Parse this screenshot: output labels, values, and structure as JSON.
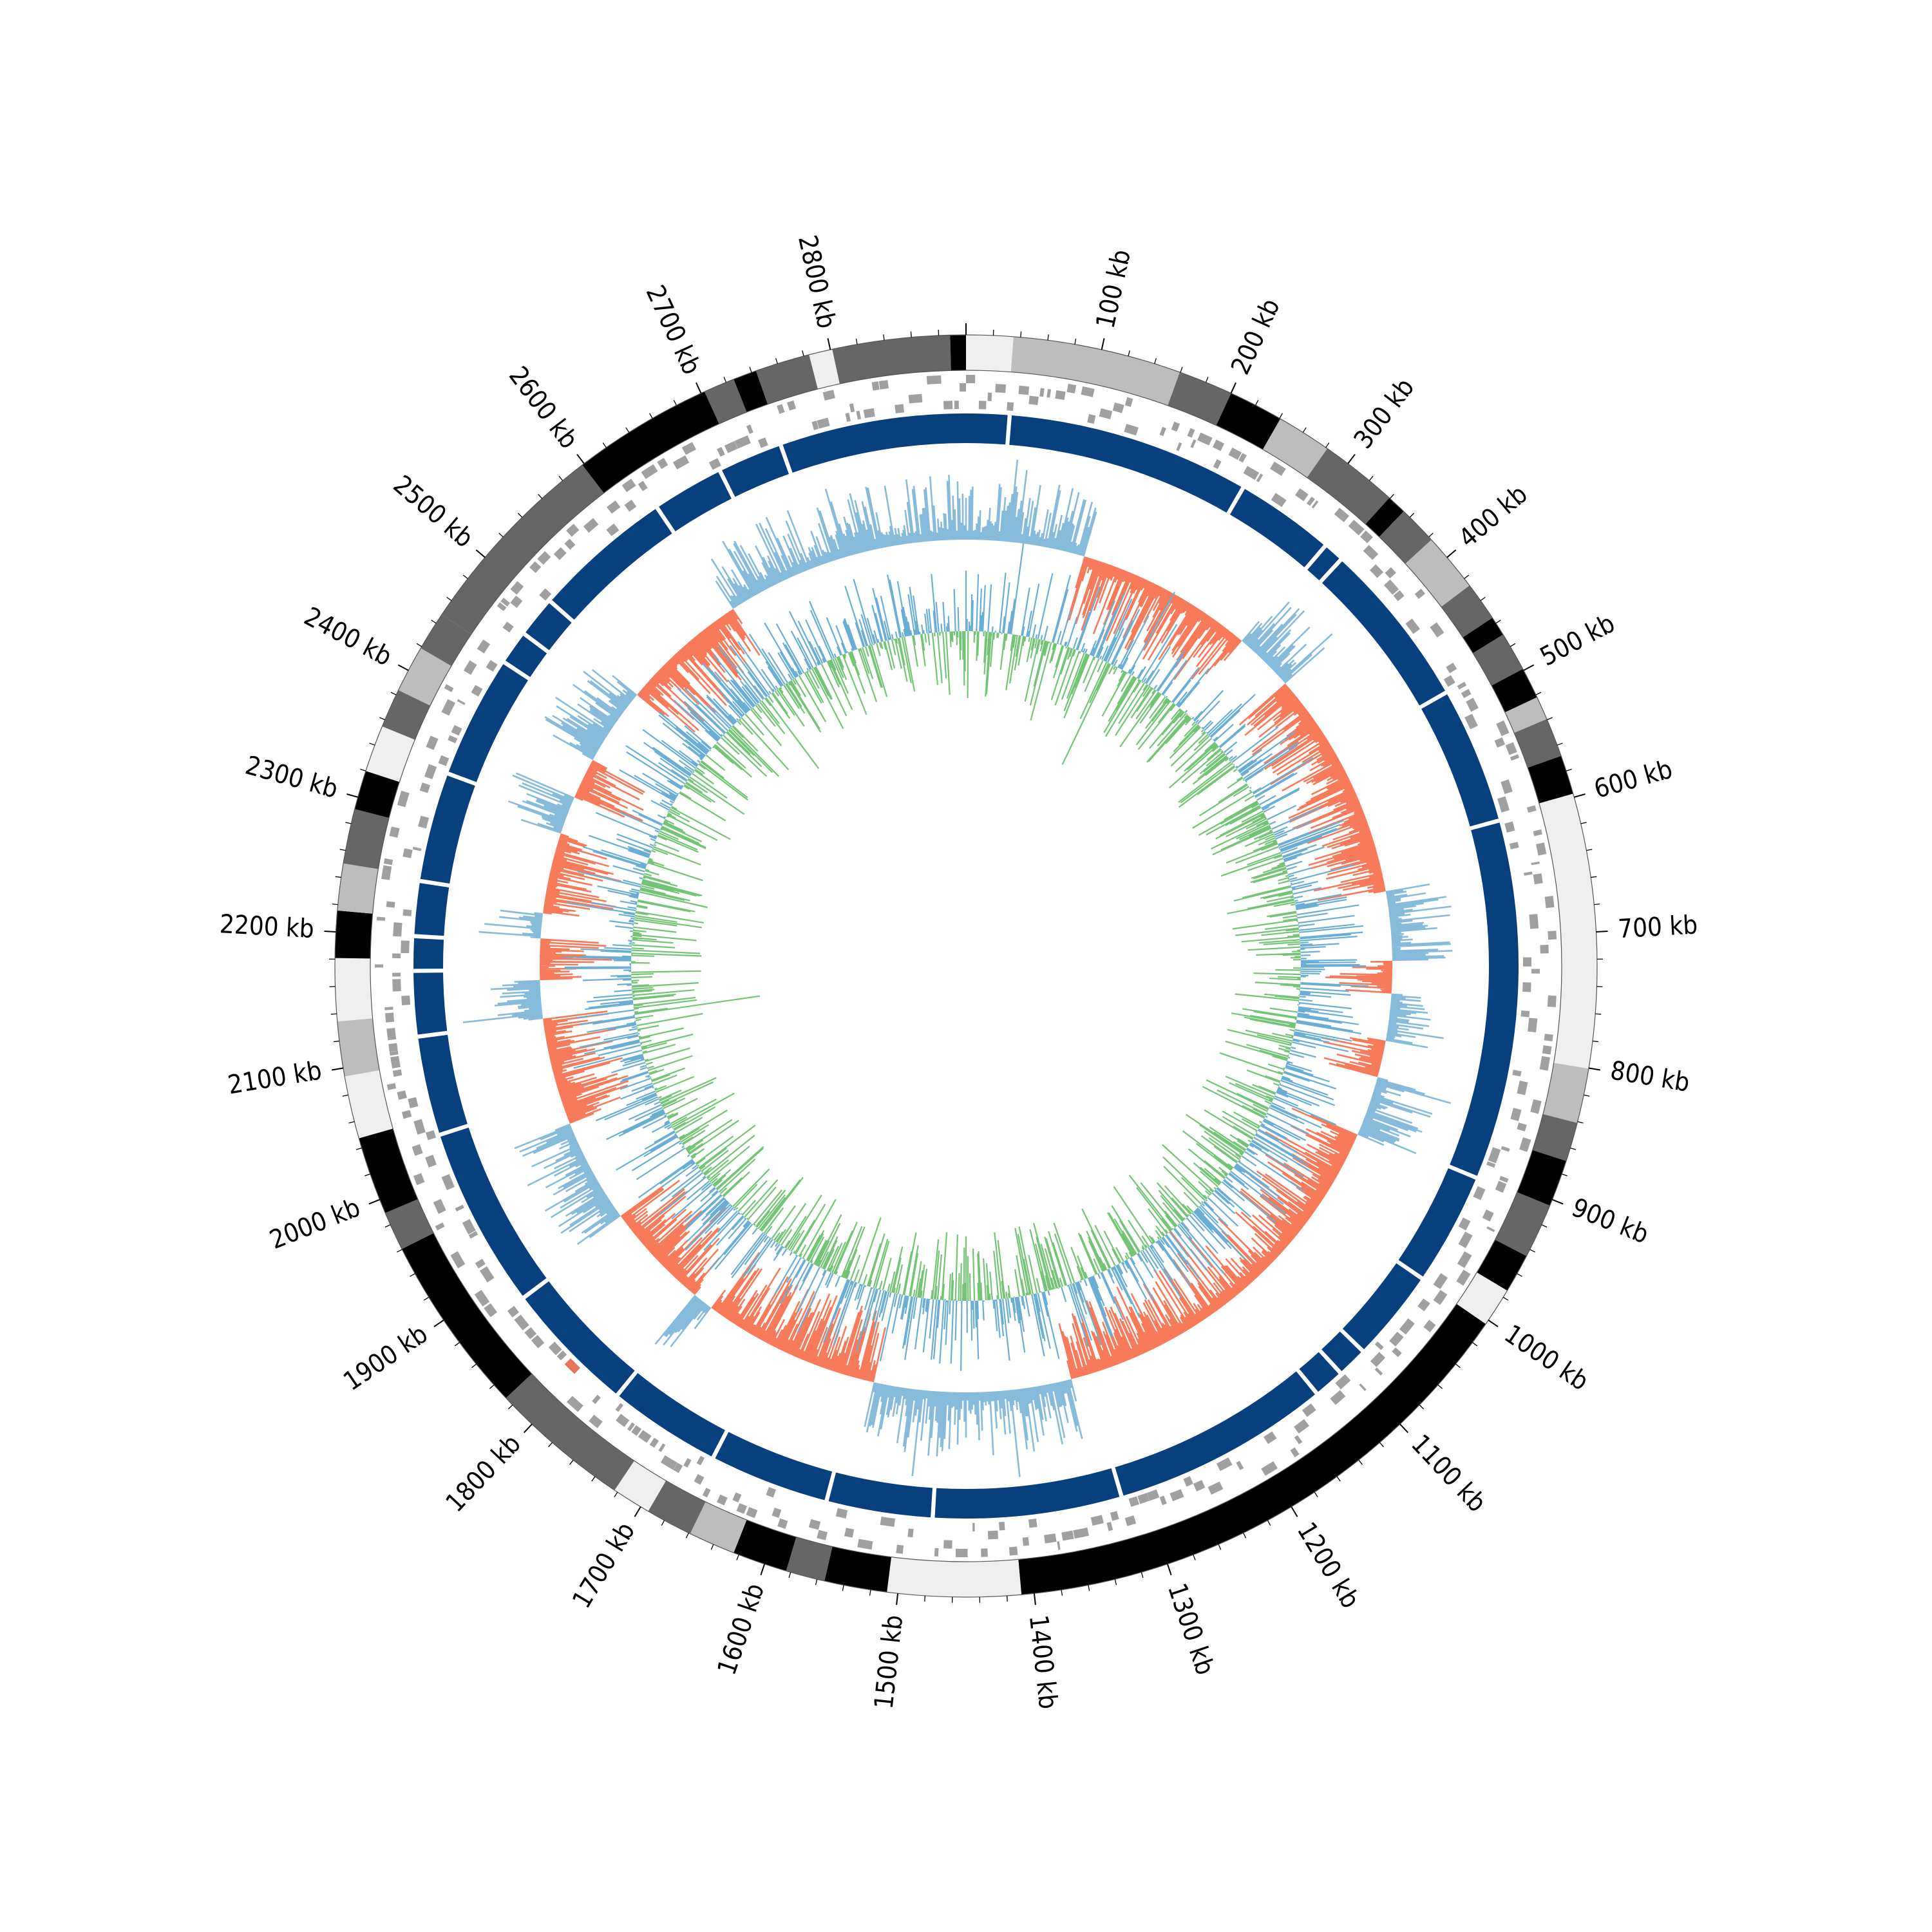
{
  "genome": {
    "total_kb": 2900,
    "label_unit": "kb",
    "tick_labels": [
      "100 kb",
      "200 kb",
      "300 kb",
      "400 kb",
      "500 kb",
      "600 kb",
      "700 kb",
      "800 kb",
      "900 kb",
      "1000 kb",
      "1100 kb",
      "1200 kb",
      "1300 kb",
      "1400 kb",
      "1500 kb",
      "1600 kb",
      "1700 kb",
      "1800 kb",
      "1900 kb",
      "2000 kb",
      "2100 kb",
      "2200 kb",
      "2300 kb",
      "2400 kb",
      "2500 kb",
      "2600 kb",
      "2700 kb",
      "2800 kb"
    ],
    "tick_positions_kb": [
      100,
      200,
      300,
      400,
      500,
      600,
      700,
      800,
      900,
      1000,
      1100,
      1200,
      1300,
      1400,
      1500,
      1600,
      1700,
      1800,
      1900,
      2000,
      2100,
      2200,
      2300,
      2400,
      2500,
      2600,
      2700,
      2800
    ],
    "minor_tick_step_kb": 20
  },
  "colors": {
    "band_black": "#000000",
    "band_dark": "#666666",
    "band_mid": "#a6a6a6",
    "band_light": "#bdbdbd",
    "band_pale": "#efefef",
    "feature_gray": "#a0a0a0",
    "feature_red": "#e8735a",
    "contig_blue": "#08407d",
    "gc_positive": "#87bbdc",
    "gc_negative": "#f77b5b",
    "skew_positive": "#6aaed6",
    "skew_negative": "#74c476"
  },
  "bands": [
    {
      "start": 0,
      "end": 0.012,
      "tone": "band_pale"
    },
    {
      "start": 0.012,
      "end": 0.055,
      "tone": "band_light"
    },
    {
      "start": 0.055,
      "end": 0.069,
      "tone": "band_dark"
    },
    {
      "start": 0.069,
      "end": 0.083,
      "tone": "band_black"
    },
    {
      "start": 0.083,
      "end": 0.097,
      "tone": "band_light"
    },
    {
      "start": 0.097,
      "end": 0.117,
      "tone": "band_dark"
    },
    {
      "start": 0.117,
      "end": 0.122,
      "tone": "band_black"
    },
    {
      "start": 0.122,
      "end": 0.132,
      "tone": "band_dark"
    },
    {
      "start": 0.132,
      "end": 0.147,
      "tone": "band_light"
    },
    {
      "start": 0.147,
      "end": 0.157,
      "tone": "band_dark"
    },
    {
      "start": 0.157,
      "end": 0.162,
      "tone": "band_black"
    },
    {
      "start": 0.162,
      "end": 0.172,
      "tone": "band_dark"
    },
    {
      "start": 0.172,
      "end": 0.18,
      "tone": "band_black"
    },
    {
      "start": 0.18,
      "end": 0.186,
      "tone": "band_light"
    },
    {
      "start": 0.186,
      "end": 0.196,
      "tone": "band_dark"
    },
    {
      "start": 0.196,
      "end": 0.206,
      "tone": "band_black"
    },
    {
      "start": 0.206,
      "end": 0.276,
      "tone": "band_pale"
    },
    {
      "start": 0.276,
      "end": 0.29,
      "tone": "band_light"
    },
    {
      "start": 0.29,
      "end": 0.3,
      "tone": "band_dark"
    },
    {
      "start": 0.3,
      "end": 0.312,
      "tone": "band_black"
    },
    {
      "start": 0.312,
      "end": 0.326,
      "tone": "band_dark"
    },
    {
      "start": 0.326,
      "end": 0.336,
      "tone": "band_black"
    },
    {
      "start": 0.336,
      "end": 0.346,
      "tone": "band_pale"
    },
    {
      "start": 0.346,
      "end": 0.486,
      "tone": "band_black"
    },
    {
      "start": 0.486,
      "end": 0.52,
      "tone": "band_pale"
    },
    {
      "start": 0.52,
      "end": 0.536,
      "tone": "band_black"
    },
    {
      "start": 0.536,
      "end": 0.546,
      "tone": "band_dark"
    },
    {
      "start": 0.546,
      "end": 0.56,
      "tone": "band_black"
    },
    {
      "start": 0.56,
      "end": 0.572,
      "tone": "band_light"
    },
    {
      "start": 0.572,
      "end": 0.584,
      "tone": "band_dark"
    },
    {
      "start": 0.584,
      "end": 0.594,
      "tone": "band_pale"
    },
    {
      "start": 0.594,
      "end": 0.63,
      "tone": "band_dark"
    },
    {
      "start": 0.63,
      "end": 0.676,
      "tone": "band_black"
    },
    {
      "start": 0.676,
      "end": 0.686,
      "tone": "band_dark"
    },
    {
      "start": 0.686,
      "end": 0.706,
      "tone": "band_black"
    },
    {
      "start": 0.706,
      "end": 0.722,
      "tone": "band_pale"
    },
    {
      "start": 0.722,
      "end": 0.736,
      "tone": "band_light"
    },
    {
      "start": 0.736,
      "end": 0.752,
      "tone": "band_pale"
    },
    {
      "start": 0.752,
      "end": 0.764,
      "tone": "band_black"
    },
    {
      "start": 0.764,
      "end": 0.776,
      "tone": "band_light"
    },
    {
      "start": 0.776,
      "end": 0.79,
      "tone": "band_dark"
    },
    {
      "start": 0.79,
      "end": 0.8,
      "tone": "band_black"
    },
    {
      "start": 0.8,
      "end": 0.812,
      "tone": "band_pale"
    },
    {
      "start": 0.812,
      "end": 0.822,
      "tone": "band_dark"
    },
    {
      "start": 0.822,
      "end": 0.834,
      "tone": "band_light"
    },
    {
      "start": 0.834,
      "end": 0.844,
      "tone": "band_dark"
    },
    {
      "start": 0.844,
      "end": 0.896,
      "tone": "band_dark"
    },
    {
      "start": 0.896,
      "end": 0.932,
      "tone": "band_black"
    },
    {
      "start": 0.932,
      "end": 0.94,
      "tone": "band_dark"
    },
    {
      "start": 0.94,
      "end": 0.946,
      "tone": "band_black"
    },
    {
      "start": 0.946,
      "end": 0.96,
      "tone": "band_dark"
    },
    {
      "start": 0.96,
      "end": 0.966,
      "tone": "band_pale"
    },
    {
      "start": 0.966,
      "end": 0.996,
      "tone": "band_dark"
    },
    {
      "start": 0.996,
      "end": 1.0,
      "tone": "band_black"
    }
  ],
  "contig_gaps": [
    0.012,
    0.083,
    0.112,
    0.118,
    0.167,
    0.207,
    0.312,
    0.345,
    0.372,
    0.381,
    0.39,
    0.454,
    0.509,
    0.54,
    0.575,
    0.608,
    0.647,
    0.7,
    0.729,
    0.748,
    0.758,
    0.774,
    0.806,
    0.842,
    0.852,
    0.864,
    0.905,
    0.926,
    0.945
  ],
  "gc_content": {
    "low_arcs": [
      [
        0.045,
        0.112
      ],
      [
        0.135,
        0.222
      ],
      [
        0.248,
        0.26
      ],
      [
        0.278,
        0.292
      ],
      [
        0.315,
        0.46
      ],
      [
        0.535,
        0.602
      ],
      [
        0.61,
        0.65
      ],
      [
        0.69,
        0.73
      ],
      [
        0.745,
        0.76
      ],
      [
        0.77,
        0.8
      ],
      [
        0.815,
        0.83
      ],
      [
        0.86,
        0.908
      ]
    ]
  },
  "gc_skew": {}
}
